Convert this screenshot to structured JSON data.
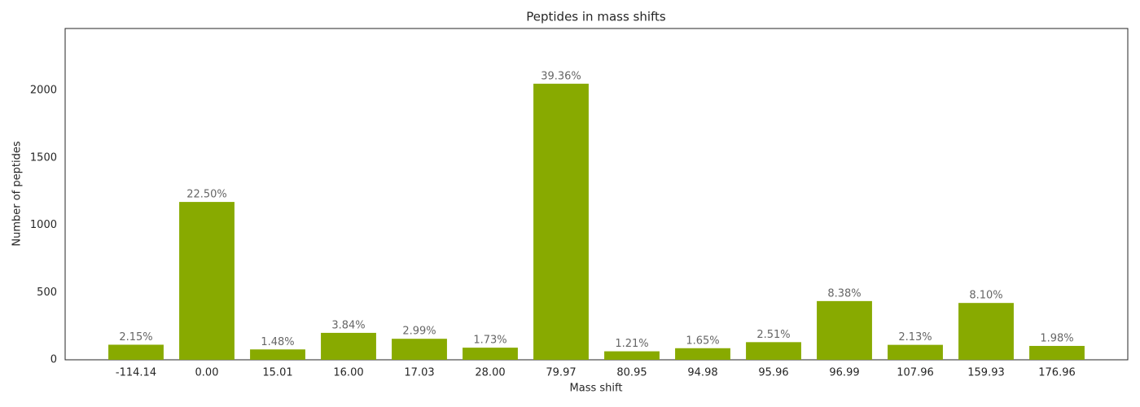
{
  "chart_data": {
    "type": "bar",
    "title": "Peptides in mass shifts",
    "x_label": "Mass shift",
    "y_label": "Number of peptides",
    "categories": [
      "-114.14",
      "0.00",
      "15.01",
      "16.00",
      "17.03",
      "28.00",
      "79.97",
      "80.95",
      "94.98",
      "95.96",
      "96.99",
      "107.96",
      "159.93",
      "176.96"
    ],
    "values": [
      112,
      1172,
      77,
      200,
      156,
      90,
      2050,
      63,
      86,
      131,
      436,
      111,
      422,
      103
    ],
    "annotations": [
      "2.15%",
      "22.50%",
      "1.48%",
      "3.84%",
      "2.99%",
      "1.73%",
      "39.36%",
      "1.21%",
      "1.65%",
      "2.51%",
      "8.38%",
      "2.13%",
      "8.10%",
      "1.98%"
    ],
    "color": "#88aa00",
    "ylim": [
      0,
      2460
    ],
    "yticks": [
      0,
      500,
      1000,
      1500,
      2000
    ],
    "grid": false
  }
}
